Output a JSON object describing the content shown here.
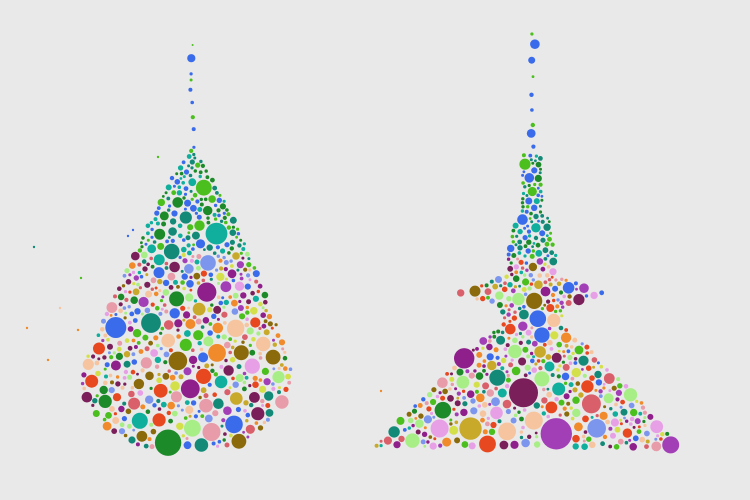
{
  "chart_data": [
    {
      "type": "scatter",
      "shape": "drop",
      "count": 620,
      "seed": 11,
      "palette": [
        "#3a6bea",
        "#4bbf1d",
        "#0fae9d",
        "#138a78",
        "#1d8a2a",
        "#e89ba8",
        "#d9606a",
        "#f6c59f",
        "#f08a2a",
        "#8a6a0a",
        "#8f1f8a",
        "#a33fb6",
        "#e7a0e6",
        "#a7ee86",
        "#d4e04a",
        "#c8a92a",
        "#7c96ee",
        "#e84820",
        "#7a1f5a"
      ]
    },
    {
      "type": "scatter",
      "shape": "dress",
      "count": 640,
      "seed": 29,
      "palette": [
        "#3a6bea",
        "#4bbf1d",
        "#0fae9d",
        "#138a78",
        "#1d8a2a",
        "#e89ba8",
        "#d9606a",
        "#f6c59f",
        "#f08a2a",
        "#8a6a0a",
        "#8f1f8a",
        "#a33fb6",
        "#e7a0e6",
        "#a7ee86",
        "#d4e04a",
        "#c8a92a",
        "#7c96ee",
        "#e84820",
        "#7a1f5a"
      ]
    }
  ]
}
